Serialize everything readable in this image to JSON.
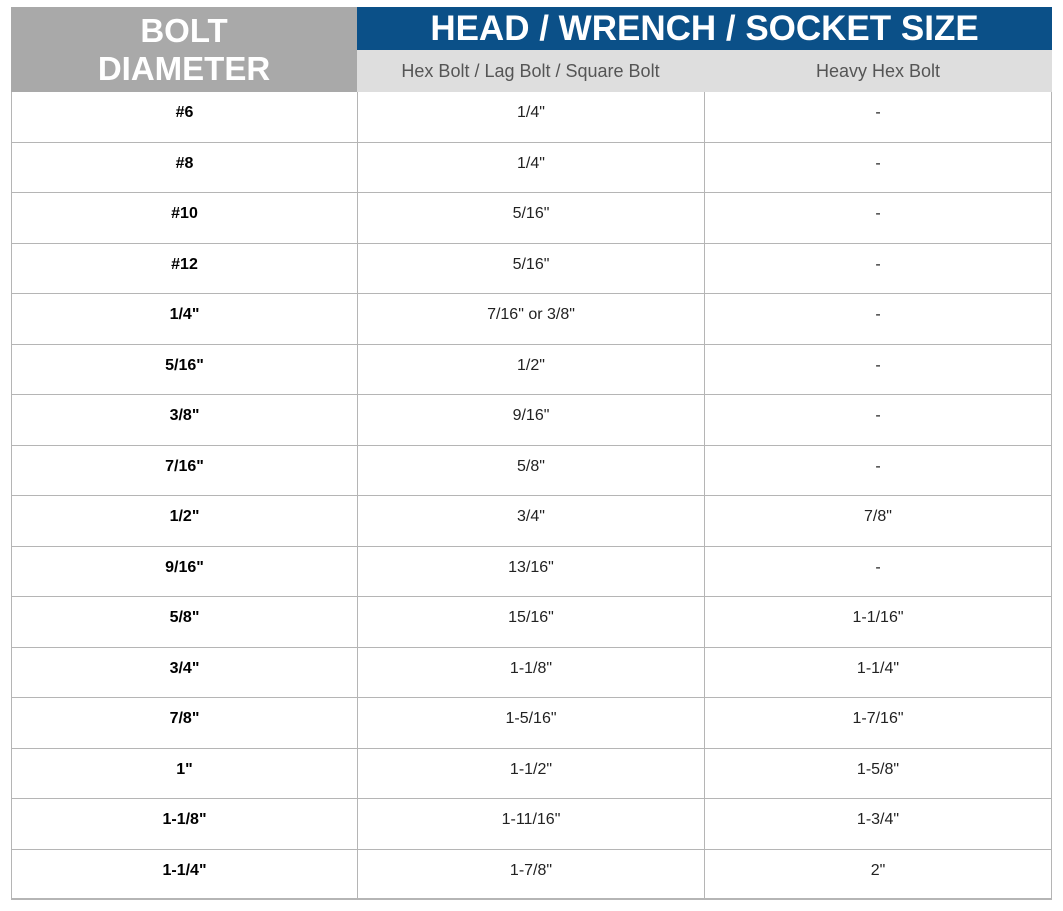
{
  "header": {
    "bolt_line1": "BOLT",
    "bolt_line2": "DIAMETER",
    "main_title": "HEAD / WRENCH / SOCKET SIZE",
    "sub_col1": "Hex Bolt / Lag Bolt / Square Bolt",
    "sub_col2": "Heavy Hex Bolt"
  },
  "colors": {
    "bolt_header": "#a9a9a9",
    "main_header": "#0b5088",
    "sub_header": "#dedede",
    "grid": "#b5b5b5"
  },
  "rows": [
    [
      "#6",
      "1/4\"",
      "-"
    ],
    [
      "#8",
      "1/4\"",
      "-"
    ],
    [
      "#10",
      "5/16\"",
      "-"
    ],
    [
      "#12",
      "5/16\"",
      "-"
    ],
    [
      "1/4\"",
      "7/16\" or 3/8\"",
      "-"
    ],
    [
      "5/16\"",
      "1/2\"",
      "-"
    ],
    [
      "3/8\"",
      "9/16\"",
      "-"
    ],
    [
      "7/16\"",
      "5/8\"",
      "-"
    ],
    [
      "1/2\"",
      "3/4\"",
      "7/8\""
    ],
    [
      "9/16\"",
      "13/16\"",
      "-"
    ],
    [
      "5/8\"",
      "15/16\"",
      "1-1/16\""
    ],
    [
      "3/4\"",
      "1-1/8\"",
      "1-1/4\""
    ],
    [
      "7/8\"",
      "1-5/16\"",
      "1-7/16\""
    ],
    [
      "1\"",
      "1-1/2\"",
      "1-5/8\""
    ],
    [
      "1-1/8\"",
      "1-11/16\"",
      "1-3/4\""
    ],
    [
      "1-1/4\"",
      "1-7/8\"",
      "2\""
    ]
  ]
}
